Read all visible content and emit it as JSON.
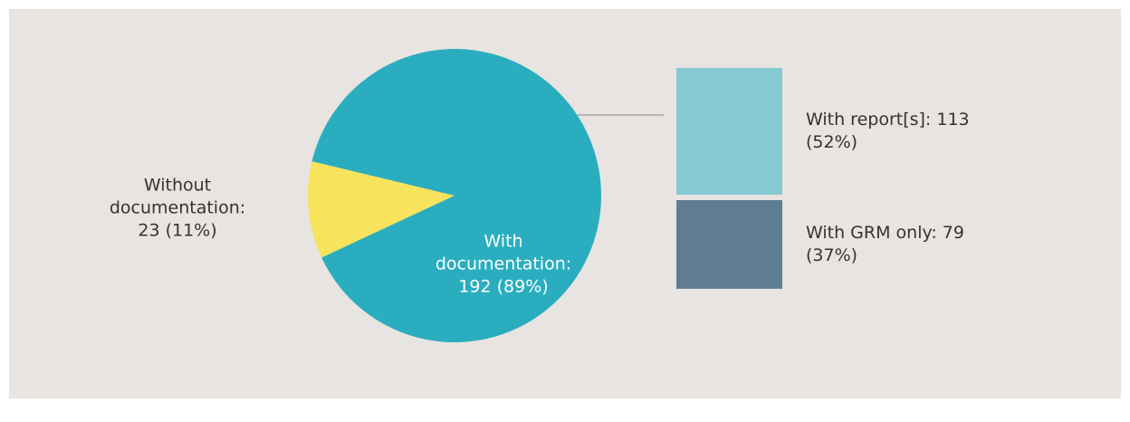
{
  "chart_data": {
    "type": "pie-of-bar",
    "slices": [
      {
        "label": "Without documentation: 23 (11%)",
        "value": 23,
        "color": "#f7e35c"
      },
      {
        "label": "With documentation: 192 (89%)",
        "value": 192,
        "color": "#2aaebf"
      }
    ],
    "breakdown": [
      {
        "label": "With report[s]: 113 (52%)",
        "value": 113,
        "color": "#87c9d2"
      },
      {
        "label": "With GRM only: 79 (37%)",
        "value": 79,
        "color": "#5e7d90"
      }
    ]
  }
}
